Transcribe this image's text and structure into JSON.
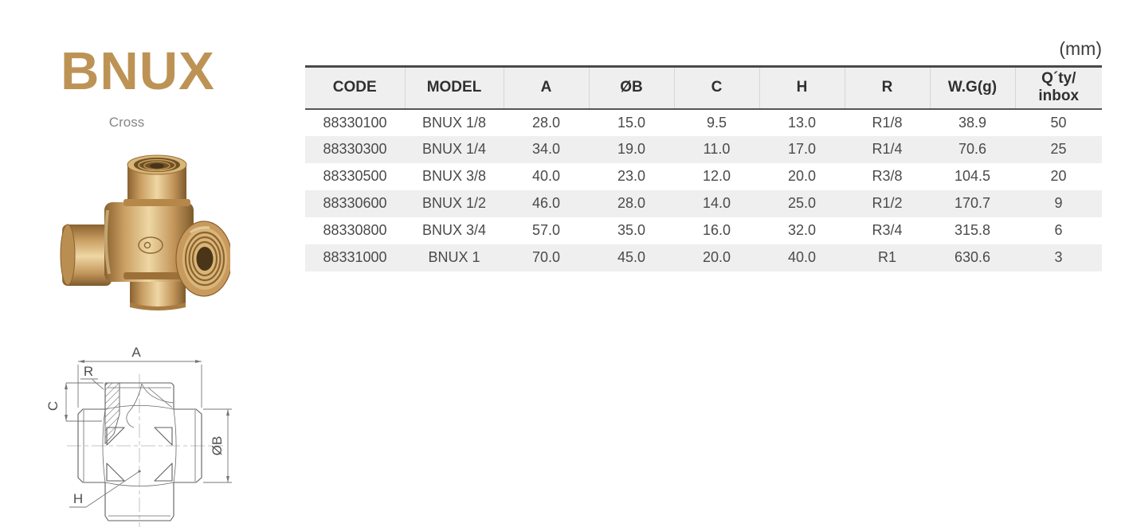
{
  "page": {
    "unit_label": "(mm)"
  },
  "product": {
    "series": "BNUX",
    "type_label": "Cross",
    "drawing_labels": {
      "a": "A",
      "r": "R",
      "c": "C",
      "ob": "ØB",
      "h": "H"
    }
  },
  "colors": {
    "series_title": "#bd9355",
    "table_zebra": "#efefef",
    "table_border_dark": "#4a4a4a",
    "brass_base": "#c89c62"
  },
  "table": {
    "columns": [
      {
        "label": "CODE"
      },
      {
        "label": "MODEL"
      },
      {
        "label": "A"
      },
      {
        "label": "ØB"
      },
      {
        "label": "C"
      },
      {
        "label": "H"
      },
      {
        "label": "R"
      },
      {
        "label": "W.G(g)"
      },
      {
        "label": "Q´ty/",
        "label2": "inbox"
      }
    ],
    "rows": [
      [
        "88330100",
        "BNUX 1/8",
        "28.0",
        "15.0",
        "9.5",
        "13.0",
        "R1/8",
        "38.9",
        "50"
      ],
      [
        "88330300",
        "BNUX 1/4",
        "34.0",
        "19.0",
        "11.0",
        "17.0",
        "R1/4",
        "70.6",
        "25"
      ],
      [
        "88330500",
        "BNUX 3/8",
        "40.0",
        "23.0",
        "12.0",
        "20.0",
        "R3/8",
        "104.5",
        "20"
      ],
      [
        "88330600",
        "BNUX 1/2",
        "46.0",
        "28.0",
        "14.0",
        "25.0",
        "R1/2",
        "170.7",
        "9"
      ],
      [
        "88330800",
        "BNUX 3/4",
        "57.0",
        "35.0",
        "16.0",
        "32.0",
        "R3/4",
        "315.8",
        "6"
      ],
      [
        "88331000",
        "BNUX 1",
        "70.0",
        "45.0",
        "20.0",
        "40.0",
        "R1",
        "630.6",
        "3"
      ]
    ]
  }
}
